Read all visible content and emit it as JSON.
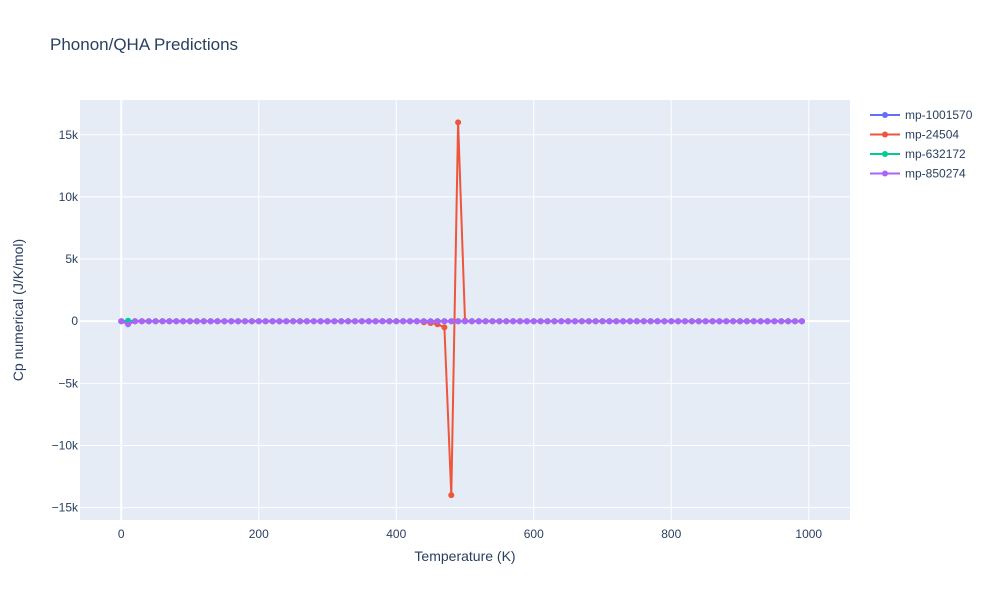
{
  "chart_data": {
    "type": "line",
    "title": "Phonon/QHA Predictions",
    "xlabel": "Temperature (K)",
    "ylabel": "Cp numerical (J/K/mol)",
    "xlim": [
      -60,
      1060
    ],
    "ylim": [
      -16000,
      17800
    ],
    "xticks": [
      0,
      200,
      400,
      600,
      800,
      1000
    ],
    "xtick_labels": [
      "0",
      "200",
      "400",
      "600",
      "800",
      "1000"
    ],
    "yticks": [
      -15000,
      -10000,
      -5000,
      0,
      5000,
      10000,
      15000
    ],
    "ytick_labels": [
      "−15k",
      "−10k",
      "−5k",
      "0",
      "5k",
      "10k",
      "15k"
    ],
    "grid": true,
    "legend_position": "top-right",
    "series": [
      {
        "name": "mp-1001570",
        "color": "#636efa",
        "x_range": [
          0,
          990,
          10
        ],
        "overrides": {}
      },
      {
        "name": "mp-24504",
        "color": "#ef553b",
        "x_range": [
          0,
          990,
          10
        ],
        "overrides": {
          "10": -50,
          "440": -80,
          "450": -150,
          "460": -250,
          "470": -500,
          "480": -14000,
          "490": 16000,
          "500": 50
        }
      },
      {
        "name": "mp-632172",
        "color": "#00cc96",
        "x_range": [
          0,
          990,
          10
        ],
        "overrides": {
          "10": 30
        }
      },
      {
        "name": "mp-850274",
        "color": "#ab63fa",
        "x_range": [
          0,
          990,
          10
        ],
        "overrides": {
          "10": -250
        }
      }
    ]
  }
}
